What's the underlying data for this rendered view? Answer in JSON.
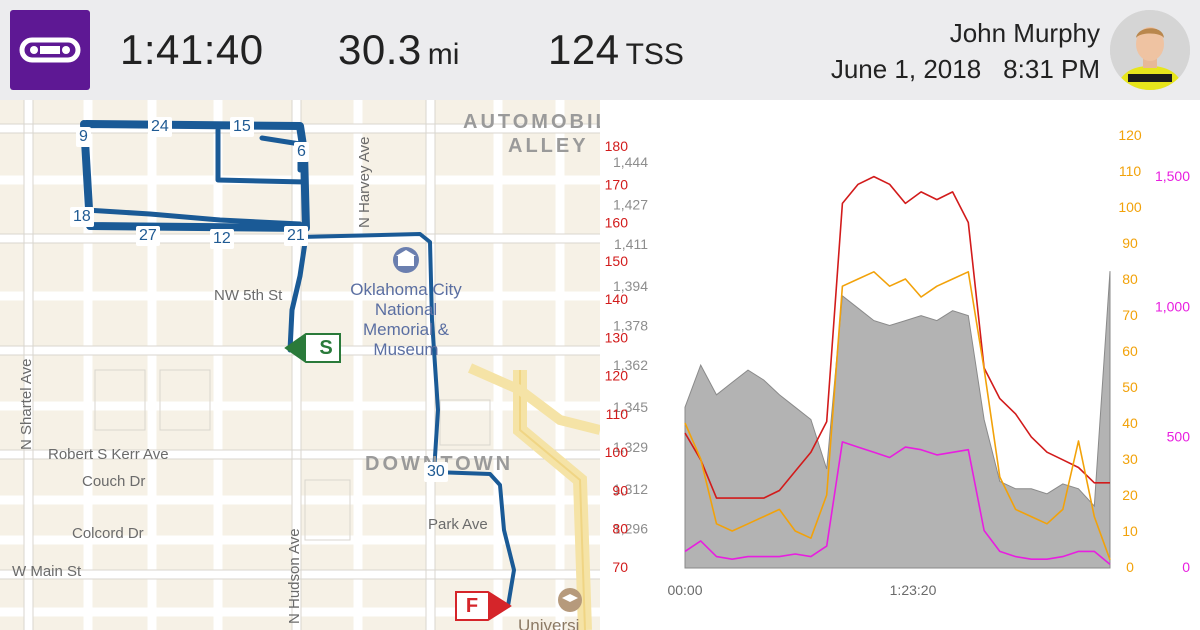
{
  "header": {
    "logo_icon": "bike-chain-icon",
    "duration": "1:41:40",
    "distance_value": "30.3",
    "distance_unit": "mi",
    "tss_value": "124",
    "tss_unit": "TSS",
    "user_name": "John Murphy",
    "date": "June 1, 2018",
    "time": "8:31 PM"
  },
  "map": {
    "streets": [
      "NW 5th St",
      "N Harvey Ave",
      "N Shartel Ave",
      "Robert S Kerr Ave",
      "Couch Dr",
      "Colcord Dr",
      "W Main St",
      "Park Ave",
      "N Hudson Ave"
    ],
    "areas": [
      "AUTOMOBILE",
      "ALLEY",
      "DOWNTOWN",
      "Universi"
    ],
    "poi": [
      "Oklahoma City",
      "National",
      "Memorial &",
      "Museum"
    ],
    "mile_markers": [
      "9",
      "24",
      "15",
      "6",
      "18",
      "27",
      "12",
      "21",
      "30"
    ],
    "start_label": "S",
    "finish_label": "F",
    "route_color": "#1a5a96"
  },
  "chart_data": {
    "type": "line",
    "x_ticks": [
      "00:00",
      "1:23:20"
    ],
    "left_axis_elev": [
      1444,
      1427,
      1411,
      1394,
      1378,
      1362,
      1345,
      1329,
      1312,
      1296
    ],
    "left_axis_hr": [
      180,
      170,
      160,
      150,
      140,
      130,
      120,
      110,
      100,
      90,
      80,
      70
    ],
    "right_axis_cadence": [
      120,
      110,
      100,
      90,
      80,
      70,
      60,
      50,
      40,
      30,
      20,
      10,
      0
    ],
    "right_axis_power": [
      1500,
      1000,
      500,
      0
    ],
    "colors": {
      "hr": "#d21b1b",
      "cadence": "#f2a20a",
      "power": "#e81ee0",
      "elevation": "#9a9a9a"
    },
    "series": [
      {
        "name": "heart_rate",
        "axis": "hr",
        "values": [
          105,
          98,
          88,
          88,
          88,
          88,
          90,
          95,
          100,
          108,
          165,
          170,
          172,
          170,
          165,
          168,
          166,
          168,
          160,
          122,
          114,
          110,
          104,
          100,
          98,
          96,
          92,
          92
        ]
      },
      {
        "name": "cadence",
        "axis": "cadence",
        "values": [
          40,
          30,
          12,
          10,
          12,
          14,
          16,
          10,
          8,
          20,
          78,
          80,
          82,
          78,
          80,
          75,
          78,
          80,
          82,
          55,
          25,
          16,
          14,
          12,
          16,
          35,
          14,
          2
        ]
      },
      {
        "name": "power",
        "axis": "power",
        "values": [
          60,
          100,
          40,
          30,
          40,
          40,
          40,
          50,
          40,
          80,
          480,
          460,
          440,
          420,
          460,
          450,
          430,
          440,
          450,
          140,
          60,
          40,
          30,
          30,
          40,
          60,
          60,
          10
        ]
      },
      {
        "name": "elevation",
        "axis": "elev",
        "values": [
          1345,
          1362,
          1350,
          1355,
          1360,
          1356,
          1350,
          1345,
          1340,
          1320,
          1390,
          1385,
          1380,
          1378,
          1380,
          1382,
          1380,
          1384,
          1382,
          1340,
          1315,
          1312,
          1312,
          1310,
          1314,
          1312,
          1305,
          1400
        ]
      }
    ]
  }
}
